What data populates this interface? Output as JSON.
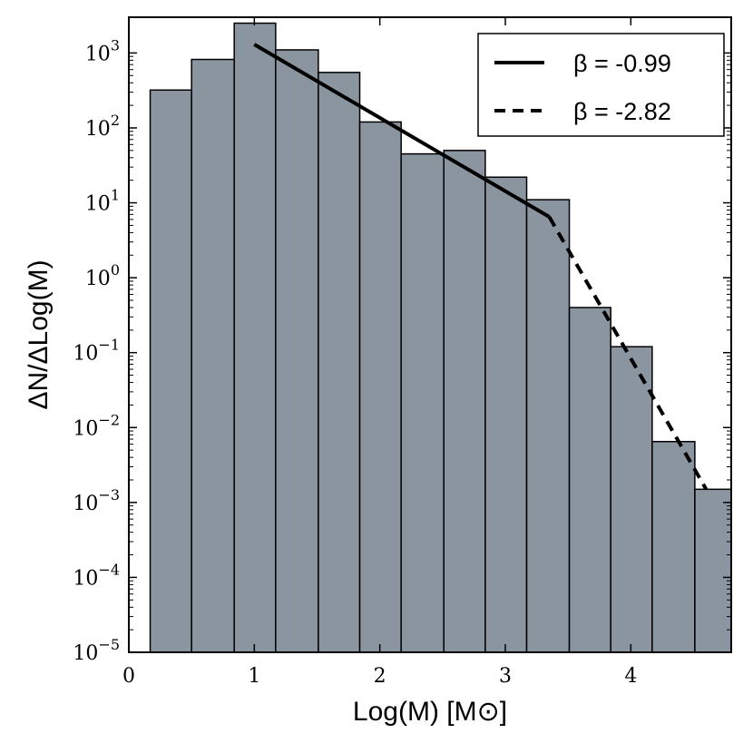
{
  "chart_data": {
    "type": "bar",
    "title": "",
    "xlabel": "Log(M) [M⊙]",
    "ylabel": "ΔN/ΔLog(M)",
    "xlim": [
      0,
      4.8
    ],
    "ylim": [
      1e-05,
      3000
    ],
    "yscale": "log",
    "grid": false,
    "legend_position": "top-right",
    "bar_color": "#8a959f",
    "bins": [
      {
        "x0": 0.17,
        "x1": 0.5,
        "value": 320
      },
      {
        "x0": 0.5,
        "x1": 0.84,
        "value": 820
      },
      {
        "x0": 0.84,
        "x1": 1.17,
        "value": 2500
      },
      {
        "x0": 1.17,
        "x1": 1.51,
        "value": 1100
      },
      {
        "x0": 1.51,
        "x1": 1.84,
        "value": 550
      },
      {
        "x0": 1.84,
        "x1": 2.17,
        "value": 120
      },
      {
        "x0": 2.17,
        "x1": 2.51,
        "value": 45
      },
      {
        "x0": 2.51,
        "x1": 2.84,
        "value": 50
      },
      {
        "x0": 2.84,
        "x1": 3.17,
        "value": 22
      },
      {
        "x0": 3.17,
        "x1": 3.51,
        "value": 11
      },
      {
        "x0": 3.51,
        "x1": 3.84,
        "value": 0.4
      },
      {
        "x0": 3.84,
        "x1": 4.17,
        "value": 0.12
      },
      {
        "x0": 4.17,
        "x1": 4.51,
        "value": 0.0065
      },
      {
        "x0": 4.51,
        "x1": 4.84,
        "value": 0.0015
      }
    ],
    "series": [
      {
        "name": "β = -0.99",
        "style": "solid",
        "x": [
          1.0,
          3.35
        ],
        "y": [
          1300,
          6.5
        ]
      },
      {
        "name": "β = -2.82",
        "style": "dashed",
        "x": [
          3.35,
          4.6
        ],
        "y": [
          6.5,
          0.0015
        ]
      }
    ],
    "x_ticks": [
      {
        "value": 0,
        "label": "0"
      },
      {
        "value": 1,
        "label": "1"
      },
      {
        "value": 2,
        "label": "2"
      },
      {
        "value": 3,
        "label": "3"
      },
      {
        "value": 4,
        "label": "4"
      }
    ],
    "y_ticks": [
      {
        "value": 1e-05,
        "base": "10",
        "exp": "−5"
      },
      {
        "value": 0.0001,
        "base": "10",
        "exp": "−4"
      },
      {
        "value": 0.001,
        "base": "10",
        "exp": "−3"
      },
      {
        "value": 0.01,
        "base": "10",
        "exp": "−2"
      },
      {
        "value": 0.1,
        "base": "10",
        "exp": "−1"
      },
      {
        "value": 1,
        "base": "10",
        "exp": "0"
      },
      {
        "value": 10,
        "base": "10",
        "exp": "1"
      },
      {
        "value": 100,
        "base": "10",
        "exp": "2"
      },
      {
        "value": 1000,
        "base": "10",
        "exp": "3"
      }
    ]
  }
}
